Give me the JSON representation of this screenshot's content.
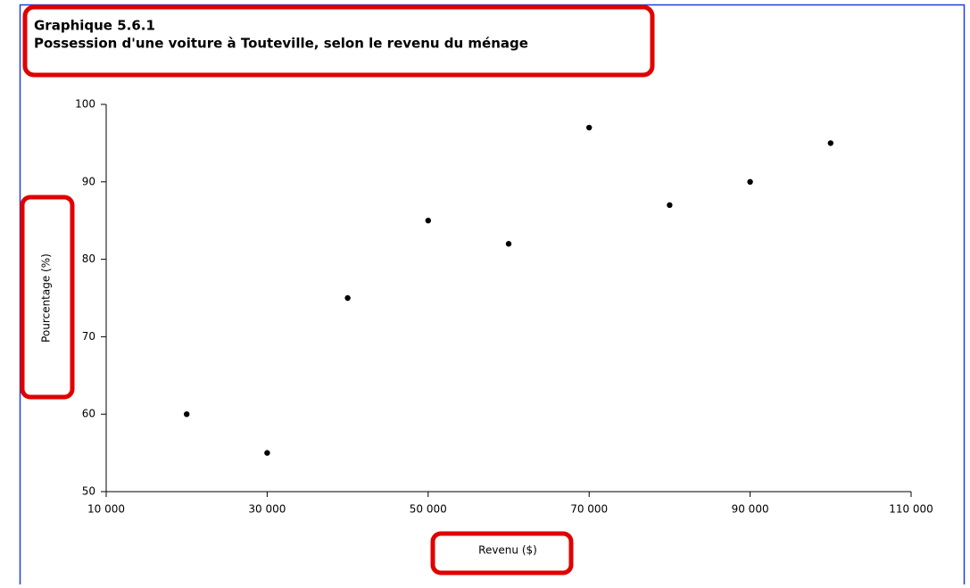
{
  "chart_data": {
    "type": "scatter",
    "title": "Graphique 5.6.1",
    "subtitle": "Possession d'une voiture à Touteville, selon le revenu du ménage",
    "x_label": "Revenu ($)",
    "y_label": "Pourcentage (%)",
    "x": [
      20000,
      30000,
      40000,
      50000,
      60000,
      70000,
      80000,
      90000,
      100000
    ],
    "values": [
      60,
      55,
      75,
      85,
      82,
      97,
      87,
      90,
      95
    ],
    "color": "#000000",
    "xlim": [
      10000,
      110000
    ],
    "xticks": [
      {
        "value": 10000,
        "label": "10 000"
      },
      {
        "value": 30000,
        "label": "30 000"
      },
      {
        "value": 50000,
        "label": "50 000"
      },
      {
        "value": 70000,
        "label": "70 000"
      },
      {
        "value": 90000,
        "label": "90 000"
      },
      {
        "value": 110000,
        "label": "110 000"
      }
    ],
    "ylim": [
      50,
      100
    ],
    "yticks": [
      50,
      60,
      70,
      80,
      90,
      100
    ],
    "grid": false
  }
}
